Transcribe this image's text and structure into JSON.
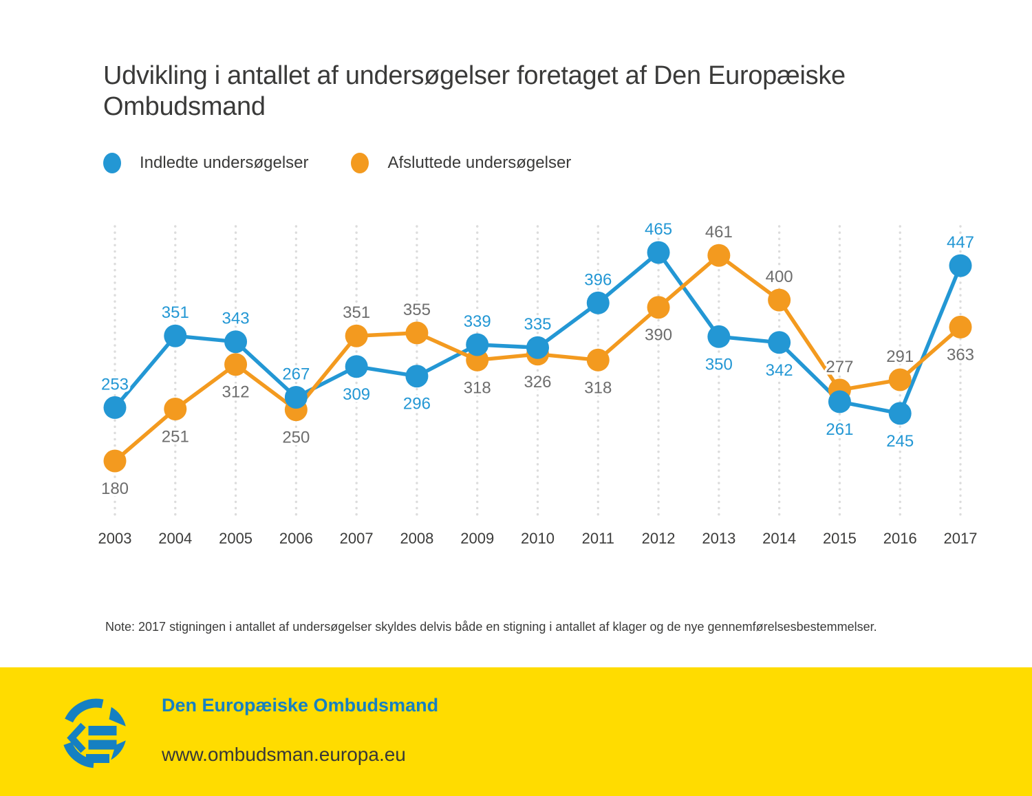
{
  "title": {
    "line1": "Udvikling i antallet af undersøgelser foretaget af Den Europæiske",
    "line2": "Ombudsmand"
  },
  "legend": [
    {
      "label": "Indledte undersøgelser"
    },
    {
      "label": "Afsluttede undersøgelser"
    }
  ],
  "note": "Note: 2017 stigningen i antallet af undersøgelser skyldes delvis både en stigning i antallet af klager og de nye gennemførelsesbestemmelser.",
  "footer": {
    "org": "Den Europæiske Ombudsmand",
    "url": "www.ombudsman.europa.eu",
    "background_color": "#ffdc00",
    "brand_color": "#1580c2",
    "logo": "european-ombudsman-logo"
  },
  "colors": {
    "blue_series": "#2397d4",
    "orange_series": "#f39a1f",
    "gray_value_labels": "#6d6d6d",
    "axis_text": "#3c3c3b",
    "gridline": "#dcdcdc",
    "title_text": "#3a3a39",
    "footer_yellow": "#ffdc00",
    "footer_blue": "#1580c2"
  },
  "chart_data": {
    "type": "line",
    "title": "Udvikling i antallet af undersøgelser foretaget af Den Europæiske Ombudsmand",
    "xlabel": "",
    "ylabel": "",
    "grid": "vertical-dotted",
    "legend_position": "top-left",
    "value_labels_shown": true,
    "y_axis_shown": false,
    "categories": [
      "2003",
      "2004",
      "2005",
      "2006",
      "2007",
      "2008",
      "2009",
      "2010",
      "2011",
      "2012",
      "2013",
      "2014",
      "2015",
      "2016",
      "2017"
    ],
    "series": [
      {
        "name": "Indledte undersøgelser",
        "key": "indledte",
        "color": "#2397d4",
        "label_color": "#2397d4",
        "values": [
          253,
          351,
          343,
          267,
          309,
          296,
          339,
          335,
          396,
          465,
          350,
          342,
          261,
          245,
          447
        ],
        "label_positions": [
          "above",
          "above",
          "above",
          "above",
          "below",
          "below",
          "above",
          "above",
          "above",
          "above",
          "below",
          "below",
          "below",
          "below",
          "above"
        ]
      },
      {
        "name": "Afsluttede undersøgelser",
        "key": "afsluttede",
        "color": "#f39a1f",
        "label_color": "#6d6d6d",
        "values": [
          180,
          251,
          312,
          250,
          351,
          355,
          318,
          326,
          318,
          390,
          461,
          400,
          277,
          291,
          363
        ],
        "label_positions": [
          "below",
          "below",
          "below",
          "below",
          "above",
          "above",
          "below",
          "below",
          "below",
          "below",
          "above",
          "above",
          "above",
          "above",
          "below"
        ]
      }
    ],
    "approx_value_range_shown": [
      180,
      465
    ]
  }
}
